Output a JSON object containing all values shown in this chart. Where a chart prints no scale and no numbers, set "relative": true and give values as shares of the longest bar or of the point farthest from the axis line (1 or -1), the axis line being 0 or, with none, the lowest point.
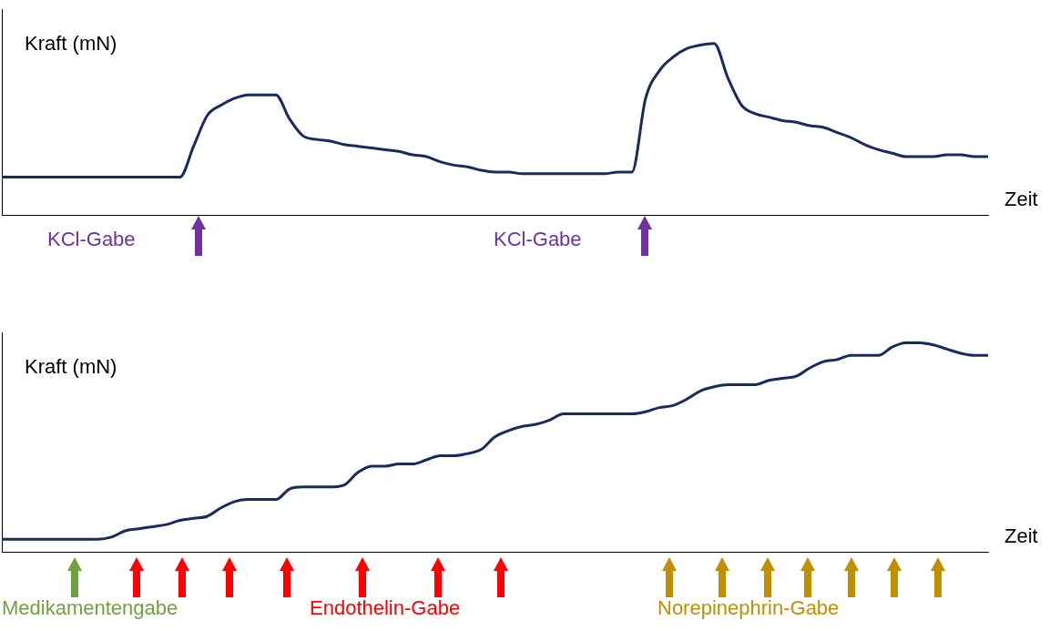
{
  "chart_data": [
    {
      "type": "line",
      "relative": true,
      "ylabel": "Kraft (mN)",
      "xlabel": "Zeit",
      "color": "#1a2a5c",
      "marker": "none",
      "grid": false,
      "legend": false,
      "categories": [
        null,
        null,
        null,
        null,
        null,
        null,
        null,
        null,
        null,
        null,
        null,
        null,
        null,
        null,
        null,
        null,
        null,
        null,
        null,
        null,
        null,
        null,
        null,
        null,
        null,
        null,
        null,
        null,
        null,
        null,
        null,
        null,
        null,
        null,
        null,
        null,
        null,
        null,
        null,
        null,
        null,
        null,
        null,
        null,
        null,
        null,
        null,
        null,
        null,
        null,
        null,
        null,
        null,
        null,
        null,
        null,
        null,
        null,
        null,
        null,
        null,
        null,
        null,
        null,
        null,
        null,
        null,
        null,
        null,
        null,
        null,
        null,
        null
      ],
      "values": [
        0.22,
        0.22,
        0.22,
        0.22,
        0.22,
        0.22,
        0.22,
        0.22,
        0.22,
        0.22,
        0.22,
        0.22,
        0.22,
        0.22,
        0.4,
        0.58,
        0.64,
        0.68,
        0.7,
        0.7,
        0.7,
        0.56,
        0.46,
        0.44,
        0.43,
        0.41,
        0.4,
        0.39,
        0.38,
        0.37,
        0.35,
        0.34,
        0.31,
        0.29,
        0.28,
        0.26,
        0.25,
        0.25,
        0.24,
        0.24,
        0.24,
        0.24,
        0.24,
        0.24,
        0.24,
        0.25,
        0.25,
        0.68,
        0.84,
        0.92,
        0.97,
        0.99,
        1,
        0.8,
        0.64,
        0.59,
        0.57,
        0.55,
        0.54,
        0.52,
        0.51,
        0.48,
        0.45,
        0.41,
        0.38,
        0.36,
        0.34,
        0.34,
        0.34,
        0.35,
        0.35,
        0.34,
        0.34
      ],
      "annotations": [
        "KCl-Gabe",
        "KCl-Gabe"
      ]
    },
    {
      "type": "line",
      "relative": true,
      "ylabel": "Kraft (mN)",
      "xlabel": "Zeit",
      "color": "#1a2a5c",
      "marker": "none",
      "grid": false,
      "legend": false,
      "categories": [
        null,
        null,
        null,
        null,
        null,
        null,
        null,
        null,
        null,
        null,
        null,
        null,
        null,
        null,
        null,
        null,
        null,
        null,
        null,
        null,
        null,
        null,
        null,
        null,
        null,
        null,
        null,
        null,
        null,
        null,
        null,
        null,
        null,
        null,
        null,
        null,
        null,
        null,
        null,
        null,
        null,
        null,
        null,
        null,
        null,
        null,
        null,
        null,
        null,
        null,
        null,
        null,
        null,
        null,
        null,
        null,
        null,
        null,
        null,
        null,
        null,
        null,
        null,
        null,
        null,
        null,
        null,
        null,
        null,
        null,
        null,
        null,
        null
      ],
      "values": [
        0.06,
        0.06,
        0.06,
        0.06,
        0.06,
        0.06,
        0.06,
        0.06,
        0.07,
        0.1,
        0.11,
        0.12,
        0.13,
        0.15,
        0.16,
        0.17,
        0.21,
        0.24,
        0.25,
        0.25,
        0.25,
        0.3,
        0.31,
        0.31,
        0.31,
        0.32,
        0.38,
        0.41,
        0.41,
        0.42,
        0.42,
        0.44,
        0.46,
        0.46,
        0.47,
        0.49,
        0.55,
        0.58,
        0.6,
        0.61,
        0.63,
        0.66,
        0.66,
        0.66,
        0.66,
        0.66,
        0.66,
        0.67,
        0.69,
        0.7,
        0.73,
        0.77,
        0.79,
        0.8,
        0.8,
        0.8,
        0.82,
        0.83,
        0.84,
        0.88,
        0.91,
        0.92,
        0.94,
        0.94,
        0.94,
        0.98,
        1,
        1,
        0.99,
        0.97,
        0.95,
        0.94,
        0.94
      ],
      "annotations": [
        "Medikamentengabe",
        "Endothelin-Gabe",
        "Norepinephrin-Gabe"
      ]
    }
  ]
}
